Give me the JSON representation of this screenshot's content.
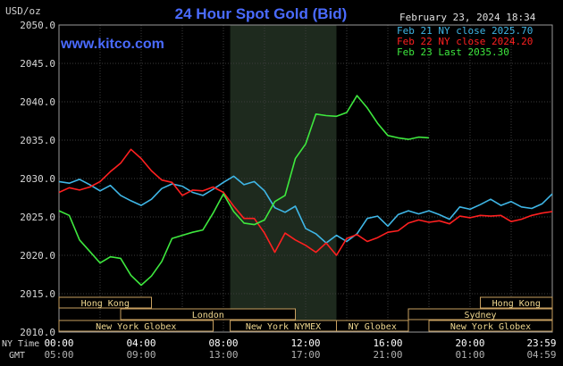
{
  "header": {
    "title": "24 Hour Spot Gold (Bid)",
    "unit": "USD/oz",
    "date": "February 23, 2024 18:34",
    "site": "www.kitco.com"
  },
  "legend": [
    {
      "label": "Feb 21 NY close 2025.70",
      "color": "#3fb6e6"
    },
    {
      "label": "Feb 22 NY close 2024.20",
      "color": "#ff2020"
    },
    {
      "label": "Feb 23 Last 2035.30",
      "color": "#3ee83e"
    }
  ],
  "axis_labels": {
    "ny": "NY Time",
    "gmt": "GMT"
  },
  "sessions": {
    "row1": [
      {
        "label": "Hong Kong",
        "t0": 0,
        "t1": 4.5
      },
      {
        "label": "Hong Kong",
        "t0": 20.5,
        "t1": 24
      }
    ],
    "row2": [
      {
        "label": "London",
        "t0": 3,
        "t1": 11.5
      },
      {
        "label": "Sydney",
        "t0": 17,
        "t1": 24
      }
    ],
    "row3": [
      {
        "label": "New York Globex",
        "t0": 0,
        "t1": 7.5
      },
      {
        "label": "New York NYMEX",
        "t0": 8.33,
        "t1": 13.5
      },
      {
        "label": "NY Globex",
        "t0": 13.5,
        "t1": 17
      },
      {
        "label": "New York Globex",
        "t0": 18,
        "t1": 24
      }
    ]
  },
  "chart_data": {
    "type": "line",
    "title": "24 Hour Spot Gold (Bid)",
    "ylabel": "USD/oz",
    "ylim": [
      2010,
      2050
    ],
    "yticks": [
      "2050.0",
      "2045.0",
      "2040.0",
      "2035.0",
      "2030.0",
      "2025.0",
      "2020.0",
      "2015.0",
      "2010.0"
    ],
    "xlim": [
      0,
      24
    ],
    "xticks_ny": [
      "00:00",
      "04:00",
      "08:00",
      "12:00",
      "16:00",
      "20:00",
      "23:59"
    ],
    "xticks_gmt": [
      "05:00",
      "09:00",
      "13:00",
      "17:00",
      "21:00",
      "01:00",
      "04:59"
    ],
    "grid": true,
    "nymex_shade": [
      8.33,
      13.5
    ],
    "series": [
      {
        "name": "Feb 21 NY close 2025.70",
        "color": "#3fb6e6",
        "x": [
          0,
          0.5,
          1,
          1.5,
          2,
          2.5,
          3,
          3.5,
          4,
          4.5,
          5,
          5.5,
          6,
          6.5,
          7,
          7.5,
          8,
          8.5,
          9,
          9.5,
          10,
          10.5,
          11,
          11.5,
          12,
          12.5,
          13,
          13.5,
          14,
          14.5,
          15,
          15.5,
          16,
          16.5,
          17,
          17.5,
          18,
          18.5,
          19,
          19.5,
          20,
          20.5,
          21,
          21.5,
          22,
          22.5,
          23,
          23.5,
          24
        ],
        "values": [
          2029.6,
          2029.4,
          2029.9,
          2029.2,
          2028.4,
          2029.1,
          2027.8,
          2027.1,
          2026.5,
          2027.3,
          2028.7,
          2029.3,
          2029.0,
          2028.2,
          2027.8,
          2028.6,
          2029.5,
          2030.3,
          2029.2,
          2029.6,
          2028.4,
          2026.2,
          2025.6,
          2026.4,
          2023.5,
          2022.8,
          2021.6,
          2022.6,
          2021.8,
          2022.8,
          2024.8,
          2025.1,
          2023.8,
          2025.3,
          2025.8,
          2025.4,
          2025.8,
          2025.3,
          2024.7,
          2026.3,
          2026.0,
          2026.6,
          2027.3,
          2026.5,
          2027.0,
          2026.3,
          2026.1,
          2026.7,
          2028.0
        ]
      },
      {
        "name": "Feb 22 NY close 2024.20",
        "color": "#ff2020",
        "x": [
          0,
          0.5,
          1,
          1.5,
          2,
          2.5,
          3,
          3.5,
          4,
          4.5,
          5,
          5.5,
          6,
          6.5,
          7,
          7.5,
          8,
          8.5,
          9,
          9.5,
          10,
          10.5,
          11,
          11.5,
          12,
          12.5,
          13,
          13.5,
          14,
          14.5,
          15,
          15.5,
          16,
          16.5,
          17,
          17.5,
          18,
          18.5,
          19,
          19.5,
          20,
          20.5,
          21,
          21.5,
          22,
          22.5,
          23,
          23.5,
          24
        ],
        "values": [
          2028.2,
          2028.8,
          2028.5,
          2028.9,
          2029.6,
          2030.9,
          2032.0,
          2033.8,
          2032.6,
          2031.0,
          2029.8,
          2029.5,
          2027.8,
          2028.5,
          2028.4,
          2028.9,
          2028.2,
          2026.4,
          2024.8,
          2024.8,
          2022.9,
          2020.4,
          2022.9,
          2022.0,
          2021.3,
          2020.4,
          2021.6,
          2020.0,
          2022.2,
          2022.7,
          2021.8,
          2022.3,
          2023.0,
          2023.2,
          2024.2,
          2024.6,
          2024.3,
          2024.5,
          2024.1,
          2025.1,
          2024.9,
          2025.2,
          2025.1,
          2025.2,
          2024.4,
          2024.7,
          2025.2,
          2025.5,
          2025.7
        ]
      },
      {
        "name": "Feb 23 Last 2035.30",
        "color": "#3ee83e",
        "x": [
          0,
          0.5,
          1,
          1.5,
          2,
          2.5,
          3,
          3.5,
          4,
          4.5,
          5,
          5.5,
          6,
          6.5,
          7,
          7.5,
          8,
          8.5,
          9,
          9.5,
          10,
          10.5,
          11,
          11.5,
          12,
          12.5,
          13,
          13.5,
          14,
          14.5,
          15,
          15.5,
          16,
          16.5,
          17,
          17.5,
          18
        ],
        "values": [
          2025.8,
          2025.2,
          2022.0,
          2020.5,
          2019.0,
          2019.8,
          2019.6,
          2017.4,
          2016.1,
          2017.3,
          2019.2,
          2022.2,
          2022.6,
          2023.0,
          2023.3,
          2025.5,
          2028.0,
          2025.7,
          2024.2,
          2024.0,
          2024.6,
          2027.0,
          2027.8,
          2032.6,
          2034.5,
          2038.4,
          2038.2,
          2038.1,
          2038.6,
          2040.8,
          2039.2,
          2037.2,
          2035.6,
          2035.3,
          2035.1,
          2035.4,
          2035.3
        ]
      }
    ]
  }
}
